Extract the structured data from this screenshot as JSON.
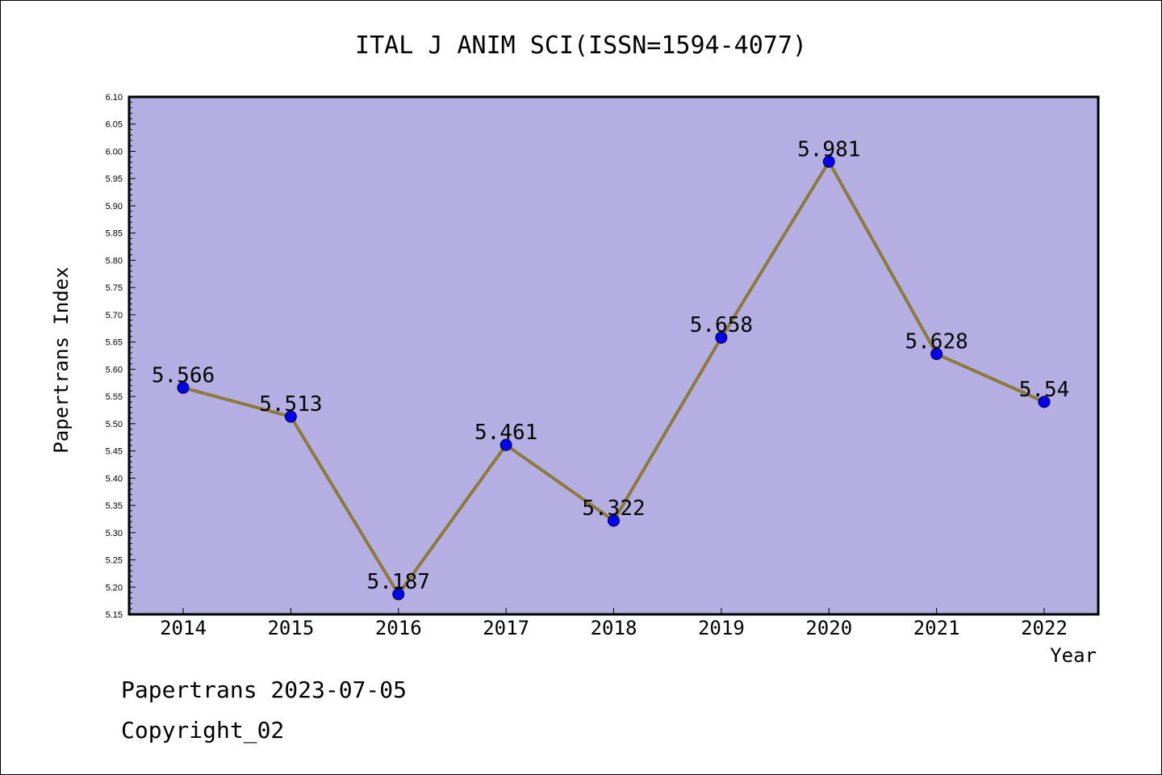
{
  "chart_data": {
    "type": "line",
    "title": "ITAL J ANIM SCI(ISSN=1594-4077)",
    "xlabel": "Year",
    "ylabel": "Papertrans Index",
    "categories": [
      "2014",
      "2015",
      "2016",
      "2017",
      "2018",
      "2019",
      "2020",
      "2021",
      "2022"
    ],
    "values": [
      5.566,
      5.513,
      5.187,
      5.461,
      5.322,
      5.658,
      5.981,
      5.628,
      5.54
    ],
    "data_labels": [
      "5.566",
      "5.513",
      "5.187",
      "5.461",
      "5.322",
      "5.658",
      "5.981",
      "5.628",
      "5.54"
    ],
    "ylim": [
      5.15,
      6.1
    ],
    "yticks": [
      "5.15",
      "5.20",
      "5.25",
      "5.30",
      "5.35",
      "5.40",
      "5.45",
      "5.50",
      "5.55",
      "5.60",
      "5.65",
      "5.70",
      "5.75",
      "5.80",
      "5.85",
      "5.90",
      "5.95",
      "6.00",
      "6.05",
      "6.10"
    ],
    "grid": false,
    "colors": {
      "plot_background": "#b4aee2",
      "line": "#8b7a3a",
      "marker": "#0000ee"
    }
  },
  "footer": {
    "line1": "Papertrans 2023-07-05",
    "line2": "Copyright_02"
  }
}
